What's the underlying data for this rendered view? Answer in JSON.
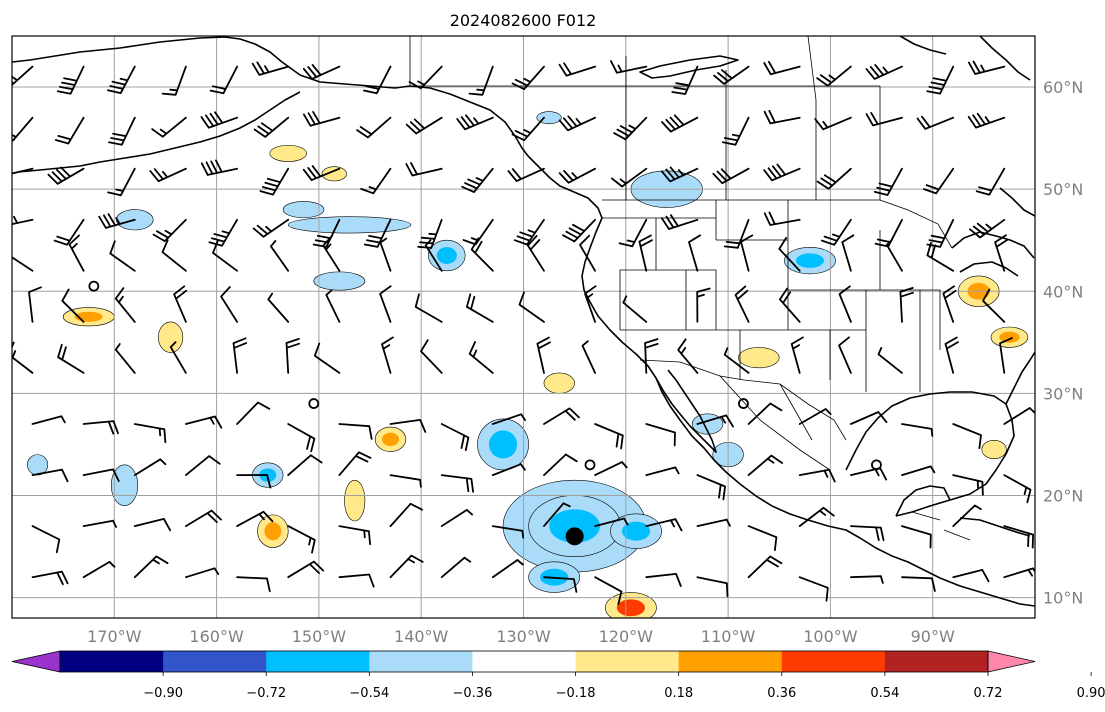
{
  "title": "2024082600 F012",
  "map": {
    "lon_range": [
      -180,
      -80
    ],
    "lat_range": [
      8,
      65
    ],
    "lon_ticks": [
      {
        "value": -170,
        "label": "170°W"
      },
      {
        "value": -160,
        "label": "160°W"
      },
      {
        "value": -150,
        "label": "150°W"
      },
      {
        "value": -140,
        "label": "140°W"
      },
      {
        "value": -130,
        "label": "130°W"
      },
      {
        "value": -120,
        "label": "120°W"
      },
      {
        "value": -110,
        "label": "110°W"
      },
      {
        "value": -100,
        "label": "100°W"
      },
      {
        "value": -90,
        "label": "90°W"
      }
    ],
    "lat_ticks": [
      {
        "value": 10,
        "label": "10°N"
      },
      {
        "value": 20,
        "label": "20°N"
      },
      {
        "value": 30,
        "label": "30°N"
      },
      {
        "value": 40,
        "label": "40°N"
      },
      {
        "value": 50,
        "label": "50°N"
      },
      {
        "value": 60,
        "label": "60°N"
      }
    ],
    "grid": true
  },
  "colorbar": {
    "levels": [
      -0.9,
      -0.72,
      -0.54,
      -0.36,
      -0.18,
      0.18,
      0.36,
      0.54,
      0.72,
      0.9
    ],
    "labels": [
      "−0.90",
      "−0.72",
      "−0.54",
      "−0.36",
      "−0.18",
      "0.18",
      "0.36",
      "0.54",
      "0.72",
      "0.90"
    ],
    "colors": [
      "#9933cc",
      "#000080",
      "#3355cc",
      "#00bfff",
      "#aadcfa",
      "#ffffff",
      "#ffe98a",
      "#ffa000",
      "#ff3c00",
      "#b22222",
      "#ff88aa"
    ],
    "extend": "both"
  },
  "contours": [
    {
      "lon": -125,
      "lat": 17,
      "rx": 7,
      "ry": 4.5,
      "level": 1,
      "sign": -1
    },
    {
      "lon": -125,
      "lat": 17,
      "rx": 4.5,
      "ry": 3,
      "level": 2,
      "sign": -1
    },
    {
      "lon": -132,
      "lat": 25,
      "rx": 2.5,
      "ry": 2.5,
      "level": 2,
      "sign": -1
    },
    {
      "lon": -119,
      "lat": 16.5,
      "rx": 2.5,
      "ry": 1.7,
      "level": 2,
      "sign": -1
    },
    {
      "lon": -127,
      "lat": 12,
      "rx": 2.5,
      "ry": 1.5,
      "level": 2,
      "sign": -1
    },
    {
      "lon": -116,
      "lat": 50,
      "rx": 3.5,
      "ry": 1.8,
      "level": 1,
      "sign": -1
    },
    {
      "lon": -102,
      "lat": 43,
      "rx": 2.5,
      "ry": 1.3,
      "level": 2,
      "sign": -1
    },
    {
      "lon": -137.5,
      "lat": 43.5,
      "rx": 1.8,
      "ry": 1.5,
      "level": 2,
      "sign": -1
    },
    {
      "lon": -147,
      "lat": 46.5,
      "rx": 6,
      "ry": 0.8,
      "level": 1,
      "sign": -1
    },
    {
      "lon": -168,
      "lat": 47,
      "rx": 1.8,
      "ry": 1,
      "level": 1,
      "sign": -1
    },
    {
      "lon": -148,
      "lat": 41,
      "rx": 2.5,
      "ry": 0.9,
      "level": 1,
      "sign": -1
    },
    {
      "lon": -151.5,
      "lat": 48,
      "rx": 2,
      "ry": 0.8,
      "level": 1,
      "sign": -1
    },
    {
      "lon": -155,
      "lat": 22,
      "rx": 1.5,
      "ry": 1.2,
      "level": 2,
      "sign": -1
    },
    {
      "lon": -169,
      "lat": 21,
      "rx": 1.3,
      "ry": 2,
      "level": 1,
      "sign": -1
    },
    {
      "lon": -177.5,
      "lat": 23,
      "rx": 1,
      "ry": 1,
      "level": 1,
      "sign": -1
    },
    {
      "lon": -110,
      "lat": 24,
      "rx": 1.5,
      "ry": 1.2,
      "level": 1,
      "sign": -1
    },
    {
      "lon": -112,
      "lat": 27,
      "rx": 1.5,
      "ry": 1,
      "level": 1,
      "sign": -1
    },
    {
      "lon": -127.5,
      "lat": 57,
      "rx": 1.2,
      "ry": 0.6,
      "level": 1,
      "sign": -1
    },
    {
      "lon": -172.5,
      "lat": 37.5,
      "rx": 2.5,
      "ry": 0.9,
      "level": 2,
      "sign": 1
    },
    {
      "lon": -164.5,
      "lat": 35.5,
      "rx": 1.2,
      "ry": 1.5,
      "level": 1,
      "sign": 1
    },
    {
      "lon": -154.5,
      "lat": 16.5,
      "rx": 1.5,
      "ry": 1.6,
      "level": 2,
      "sign": 1
    },
    {
      "lon": -146.5,
      "lat": 19.5,
      "rx": 1,
      "ry": 2,
      "level": 1,
      "sign": 1
    },
    {
      "lon": -143,
      "lat": 25.5,
      "rx": 1.5,
      "ry": 1.2,
      "level": 2,
      "sign": 1
    },
    {
      "lon": -119.5,
      "lat": 9,
      "rx": 2.5,
      "ry": 1.5,
      "level": 3,
      "sign": 1
    },
    {
      "lon": -85.5,
      "lat": 40,
      "rx": 2,
      "ry": 1.5,
      "level": 2,
      "sign": 1
    },
    {
      "lon": -82.5,
      "lat": 35.5,
      "rx": 1.8,
      "ry": 1,
      "level": 2,
      "sign": 1
    },
    {
      "lon": -107,
      "lat": 33.5,
      "rx": 2,
      "ry": 1,
      "level": 1,
      "sign": 1
    },
    {
      "lon": -126.5,
      "lat": 31,
      "rx": 1.5,
      "ry": 1,
      "level": 1,
      "sign": 1
    },
    {
      "lon": -153,
      "lat": 53.5,
      "rx": 1.8,
      "ry": 0.8,
      "level": 1,
      "sign": 1
    },
    {
      "lon": -148.5,
      "lat": 51.5,
      "rx": 1.2,
      "ry": 0.7,
      "level": 1,
      "sign": 1
    },
    {
      "lon": -84,
      "lat": 24.5,
      "rx": 1.2,
      "ry": 0.9,
      "level": 1,
      "sign": 1
    }
  ],
  "calm_points": [
    {
      "lon": -172,
      "lat": 40.5
    },
    {
      "lon": -150.5,
      "lat": 29
    },
    {
      "lon": -123.5,
      "lat": 23
    },
    {
      "lon": -108.5,
      "lat": 29
    },
    {
      "lon": -95.5,
      "lat": 23
    }
  ],
  "low_center": {
    "lon": -125,
    "lat": 16
  }
}
